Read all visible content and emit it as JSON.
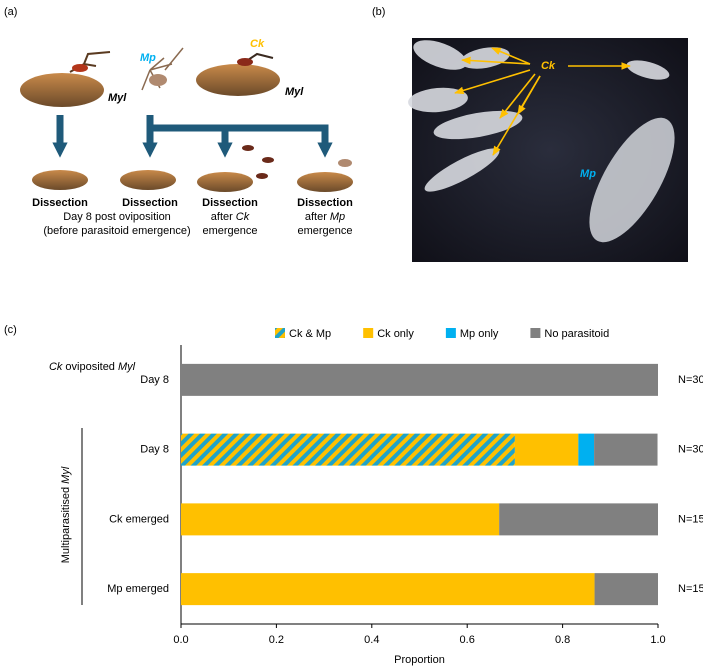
{
  "panel_a": {
    "label": "(a)",
    "host1": "Myl",
    "wasp_mp": "Mp",
    "wasp_ck": "Ck",
    "host2": "Myl",
    "steps": [
      {
        "title": "Dissection",
        "lines": [
          "Day 8 post oviposition",
          "(before parasitoid emergence)"
        ]
      },
      {
        "title": "Dissection"
      },
      {
        "title": "Dissection",
        "pre": "after",
        "species": "Ck",
        "post": "emergence"
      },
      {
        "title": "Dissection",
        "pre": "after",
        "species": "Mp",
        "post": "emergence"
      }
    ]
  },
  "panel_b": {
    "label": "(b)",
    "ck": "Ck",
    "mp": "Mp"
  },
  "panel_c": {
    "label": "(c)",
    "group1": [
      "Ck",
      "oviposited",
      "Myl"
    ],
    "group2": [
      "Multiparasitised",
      "Myl"
    ]
  },
  "chart_data": {
    "type": "bar",
    "orientation": "horizontal",
    "stacked": true,
    "categories": [
      "Day 8",
      "Day 8",
      "Ck emerged",
      "Mp emerged"
    ],
    "series": [
      {
        "name": "Ck & Mp",
        "color": "#FFC000",
        "hatch_color": "#1FA3C8",
        "values": [
          0,
          0.7,
          0,
          0
        ]
      },
      {
        "name": "Ck only",
        "color": "#FFC000",
        "values": [
          0,
          0.133,
          0.667,
          0.867
        ]
      },
      {
        "name": "Mp only",
        "color": "#00B0F0",
        "values": [
          0,
          0.033,
          0,
          0
        ]
      },
      {
        "name": "No parasitoid",
        "color": "#808080",
        "values": [
          1,
          0.133,
          0.333,
          0.133
        ]
      }
    ],
    "annotations": [
      "N=30",
      "N=30",
      "N=15",
      "N=15"
    ],
    "xlabel": "Proportion",
    "xlim": [
      0,
      1
    ],
    "xticks": [
      {
        "value": 0,
        "label": "0.0"
      },
      0.2,
      0.4,
      0.6,
      0.8,
      {
        "value": 1,
        "label": "1.0"
      }
    ],
    "legend": "top"
  }
}
